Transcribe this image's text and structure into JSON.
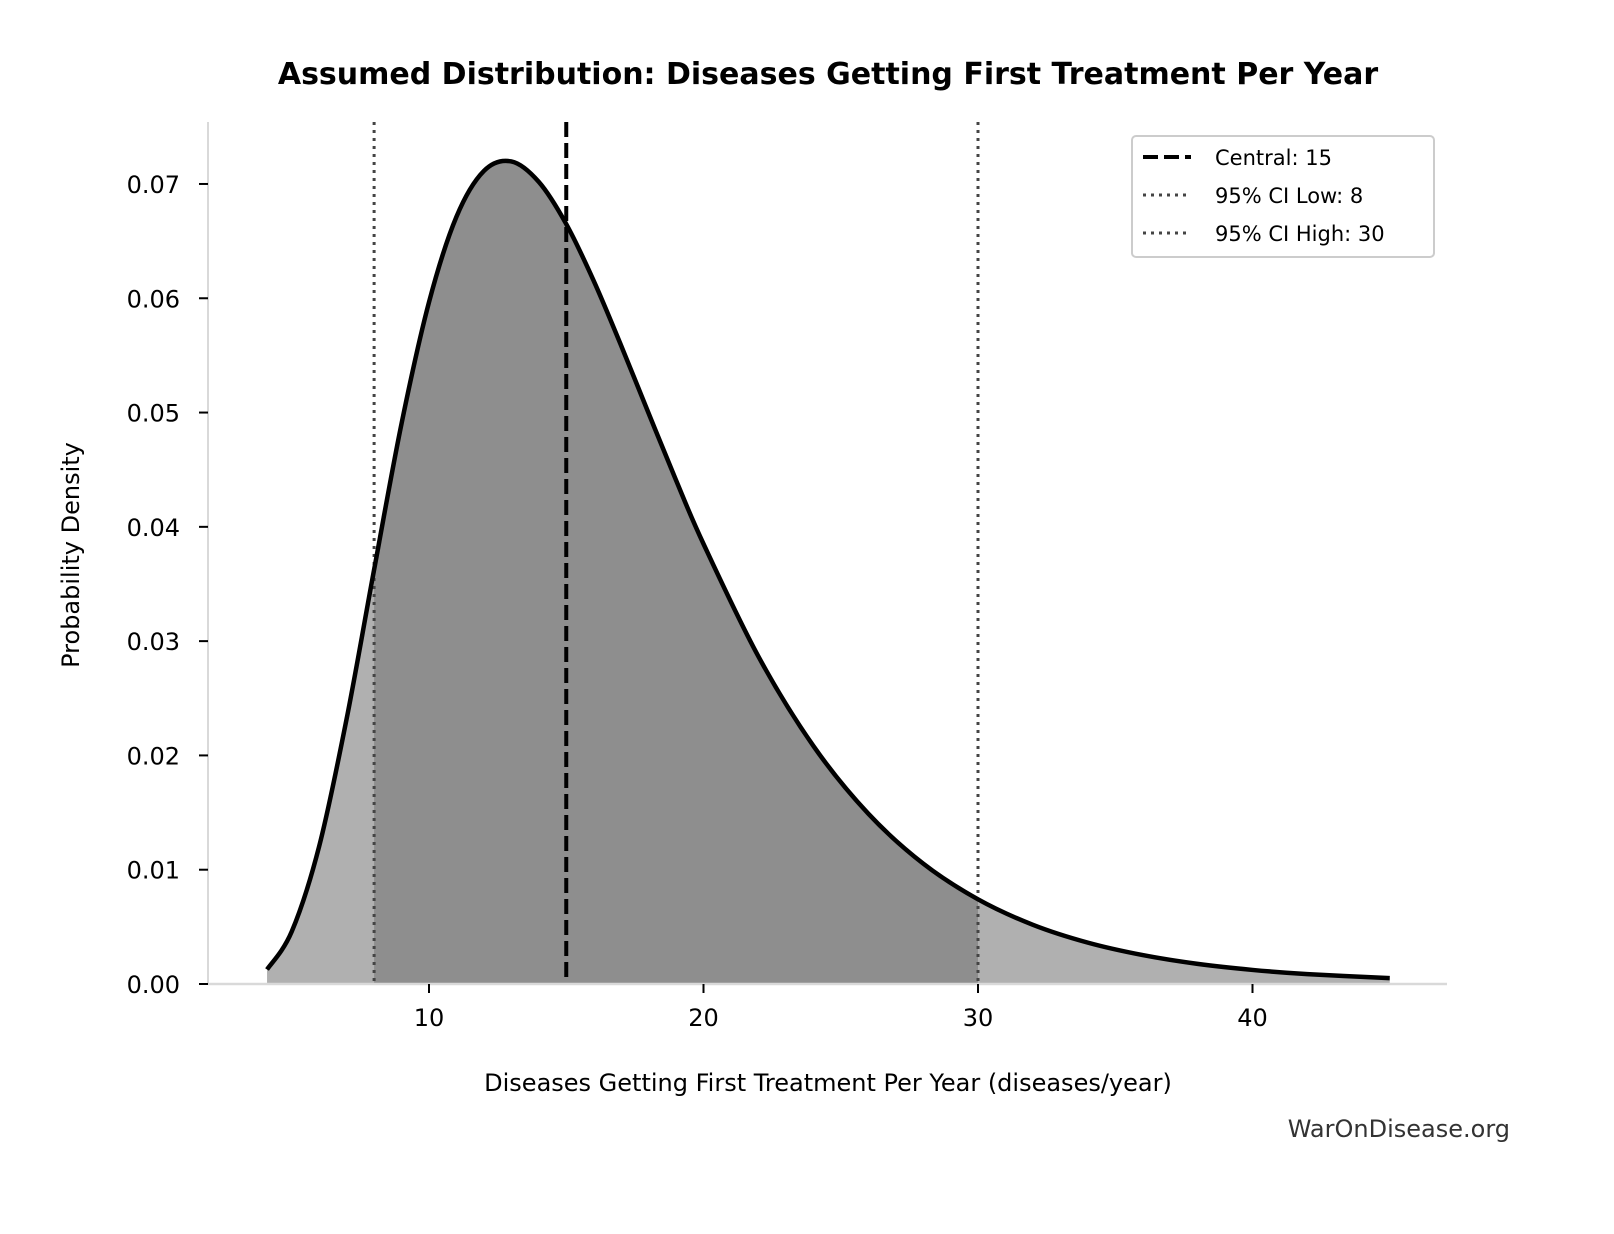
{
  "chart_data": {
    "type": "area",
    "title": "Assumed Distribution: Diseases Getting First Treatment Per Year",
    "xlabel": "Diseases Getting First Treatment Per Year (diseases/year)",
    "ylabel": "Probability Density",
    "xlim": [
      2,
      47
    ],
    "ylim": [
      0,
      0.0755
    ],
    "x_ticks": [
      10,
      20,
      30,
      40
    ],
    "x_tick_labels": [
      "10",
      "20",
      "30",
      "40"
    ],
    "y_ticks": [
      0,
      0.01,
      0.02,
      0.03,
      0.04,
      0.05,
      0.06,
      0.07
    ],
    "y_tick_labels": [
      "0.00",
      "0.01",
      "0.02",
      "0.03",
      "0.04",
      "0.05",
      "0.06",
      "0.07"
    ],
    "grid": false,
    "series": {
      "x": [
        4.1,
        5,
        6,
        7,
        8,
        9,
        10,
        11,
        12,
        13,
        14,
        15,
        16,
        17,
        18,
        19,
        20,
        22,
        24,
        26,
        28,
        30,
        32,
        34,
        36,
        38,
        40,
        42,
        45
      ],
      "y": [
        0.00127,
        0.00459,
        0.01206,
        0.02321,
        0.03625,
        0.04904,
        0.05966,
        0.06713,
        0.07114,
        0.07197,
        0.07018,
        0.06649,
        0.06153,
        0.05586,
        0.04994,
        0.04408,
        0.03851,
        0.02866,
        0.02084,
        0.01491,
        0.01054,
        0.00741,
        0.00518,
        0.00362,
        0.00253,
        0.00176,
        0.00123,
        0.000865,
        0.00051
      ]
    },
    "shaded_interval": [
      8,
      30
    ],
    "reference_lines": [
      {
        "label": "Central: 15",
        "x": 15,
        "style": "dashed"
      },
      {
        "label": "95% CI Low: 8",
        "x": 8,
        "style": "dotted"
      },
      {
        "label": "95% CI High: 30",
        "x": 30,
        "style": "dotted"
      }
    ],
    "legend_position": "top-right",
    "colors": {
      "curve": "#000000",
      "tail_fill": "#b0b0b0",
      "ci_fill": "#8e8e8e",
      "ci_line": "#444444",
      "axis": "#d9d9d9"
    }
  },
  "watermark": "WarOnDisease.org"
}
